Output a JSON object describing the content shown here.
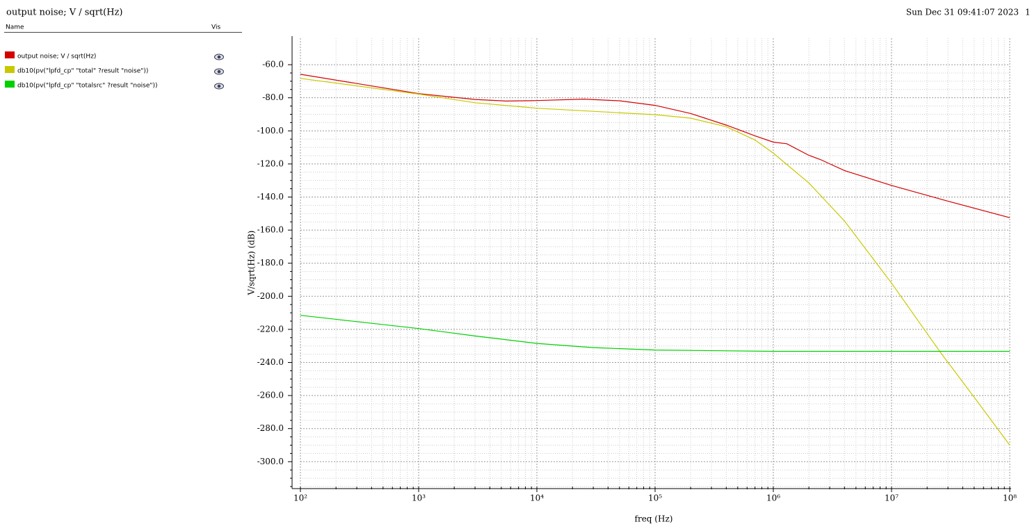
{
  "window_title": "output noise; V / sqrt(Hz)",
  "timestamp": "Sun Dec 31 09:41:07 2023",
  "page_number": "1",
  "legend_headers": {
    "name": "Name",
    "vis": "Vis"
  },
  "chart_data": {
    "type": "line",
    "xlabel": "freq (Hz)",
    "ylabel": "V/sqrt(Hz) (dB)",
    "xlog": true,
    "grid": true,
    "xlim": [
      100,
      100000000
    ],
    "ylim": [
      -315,
      -44
    ],
    "xticks": [
      {
        "value": 100,
        "label": "10²"
      },
      {
        "value": 1000,
        "label": "10³"
      },
      {
        "value": 10000,
        "label": "10⁴"
      },
      {
        "value": 100000,
        "label": "10⁵"
      },
      {
        "value": 1000000,
        "label": "10⁶"
      },
      {
        "value": 10000000,
        "label": "10⁷"
      },
      {
        "value": 100000000,
        "label": "10⁸"
      }
    ],
    "yticks": [
      {
        "value": -60,
        "label": "-60.0"
      },
      {
        "value": -80,
        "label": "-80.0"
      },
      {
        "value": -100,
        "label": "-100.0"
      },
      {
        "value": -120,
        "label": "-120.0"
      },
      {
        "value": -140,
        "label": "-140.0"
      },
      {
        "value": -160,
        "label": "-160.0"
      },
      {
        "value": -180,
        "label": "-180.0"
      },
      {
        "value": -200,
        "label": "-200.0"
      },
      {
        "value": -220,
        "label": "-220.0"
      },
      {
        "value": -240,
        "label": "-240.0"
      },
      {
        "value": -260,
        "label": "-260.0"
      },
      {
        "value": -280,
        "label": "-280.0"
      },
      {
        "value": -300,
        "label": "-300.0"
      }
    ],
    "series": [
      {
        "name": "output noise; V / sqrt(Hz)",
        "color": "#d40000",
        "x": [
          100,
          1000,
          3000,
          5500,
          10000,
          25000,
          50000,
          100000,
          200000,
          400000,
          700000,
          1000000,
          1300000,
          2000000,
          2500000,
          4000000,
          10000000,
          30000000,
          100000000
        ],
        "values": [
          -65.8,
          -77.5,
          -81,
          -82,
          -81.7,
          -80.8,
          -81.8,
          -84.6,
          -89.5,
          -96.5,
          -103,
          -106.8,
          -107.8,
          -114.8,
          -117.3,
          -124,
          -133,
          -142.5,
          -152.5
        ]
      },
      {
        "name": "db10(pv(\"lpfd_cp\" \"total\" ?result \"noise\"))",
        "color": "#c8c800",
        "x": [
          100,
          1000,
          3000,
          10000,
          30000,
          100000,
          200000,
          400000,
          700000,
          1000000,
          2000000,
          4000000,
          10000000,
          26000000,
          50000000,
          100000000
        ],
        "values": [
          -68.3,
          -77.8,
          -83,
          -86.3,
          -88.2,
          -90.2,
          -92.3,
          -97.5,
          -105.5,
          -113.5,
          -131.5,
          -154.5,
          -192,
          -234,
          -261,
          -290
        ]
      },
      {
        "name": "db10(pv(\"lpfd_cp\" \"totalsrc\" ?result \"noise\"))",
        "color": "#00d000",
        "x": [
          100,
          1000,
          3000,
          10000,
          30000,
          100000,
          1000000,
          100000000
        ],
        "values": [
          -211.5,
          -219.5,
          -224,
          -228.5,
          -231,
          -232.5,
          -233.3,
          -233.3
        ]
      }
    ]
  }
}
